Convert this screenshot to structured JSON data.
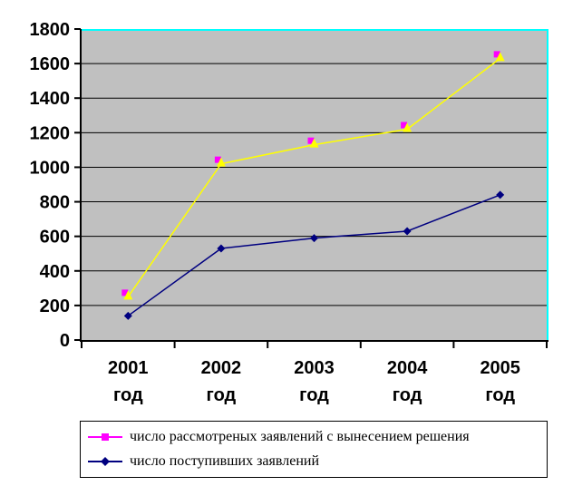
{
  "chart_data": {
    "type": "line",
    "title": "",
    "categories": [
      "2001 год",
      "2002 год",
      "2003 год",
      "2004 год",
      "2005 год"
    ],
    "series": [
      {
        "name": "число рассмотреных заявлений с вынесением решения",
        "values": [
          250,
          1020,
          1130,
          1220,
          1630
        ],
        "line_color": "#FFFF00",
        "marker": "square-with-triangle",
        "marker_square_color": "#FF00FF",
        "marker_triangle_color": "#FFFF00",
        "legend_line_color": "#FF00FF",
        "legend_marker": "square",
        "legend_marker_color": "#FF00FF"
      },
      {
        "name": "число поступивших заявлений",
        "values": [
          140,
          530,
          590,
          630,
          840
        ],
        "line_color": "#000080",
        "marker": "diamond",
        "marker_color": "#000080",
        "legend_line_color": "#000080",
        "legend_marker": "diamond",
        "legend_marker_color": "#000080"
      }
    ],
    "ylim": [
      0,
      1800
    ],
    "yticks": [
      1800,
      1600,
      1400,
      1200,
      1000,
      800,
      600,
      400,
      200,
      0
    ],
    "grid": true,
    "legend_position": "bottom",
    "colors": {
      "plot_bg": "#C0C0C0",
      "plot_highlight_border": "#00FFFF",
      "gridline": "#000000",
      "axis": "#000000",
      "tick": "#000000",
      "label_text": "#000000",
      "legend_bg": "#FFFFFF",
      "legend_border": "#000000"
    }
  }
}
